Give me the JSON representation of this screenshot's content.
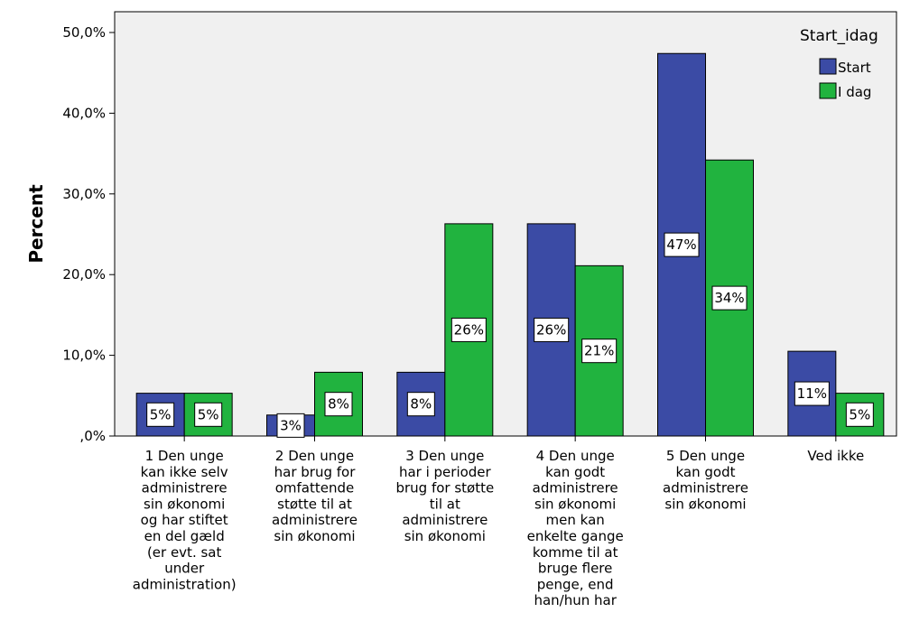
{
  "chart_data": {
    "type": "bar",
    "ylabel": "Percent",
    "xlabel": "",
    "ylim": [
      0,
      50
    ],
    "y_ticks": [
      0,
      10,
      20,
      30,
      40,
      50
    ],
    "y_tick_labels": [
      ",0%",
      "10,0%",
      "20,0%",
      "30,0%",
      "40,0%",
      "50,0%"
    ],
    "categories": [
      [
        "1 Den unge",
        "kan ikke selv",
        "administrere",
        "sin økonomi",
        "og har stiftet",
        "en del gæld",
        "(er evt. sat",
        "under",
        "administration)"
      ],
      [
        "2 Den unge",
        "har brug for",
        "omfattende",
        "støtte til at",
        "administrere",
        "sin økonomi"
      ],
      [
        "3 Den unge",
        "har i perioder",
        "brug for støtte",
        "til at",
        "administrere",
        "sin økonomi"
      ],
      [
        "4 Den unge",
        "kan godt",
        "administrere",
        "sin økonomi",
        "men kan",
        "enkelte gange",
        "komme til at",
        "bruge flere",
        "penge, end",
        "han/hun har"
      ],
      [
        "5 Den unge",
        "kan godt",
        "administrere",
        "sin økonomi"
      ],
      [
        "Ved ikke"
      ]
    ],
    "legend_title": "Start_idag",
    "legend_position": "top-right",
    "series": [
      {
        "name": "Start",
        "color": "#3b4ba5",
        "values": [
          5.3,
          2.6,
          7.9,
          26.3,
          47.4,
          10.5
        ],
        "labels": [
          "5%",
          "3%",
          "8%",
          "26%",
          "47%",
          "11%"
        ]
      },
      {
        "name": "I dag",
        "color": "#21b33f",
        "values": [
          5.3,
          7.9,
          26.3,
          21.1,
          34.2,
          5.3
        ],
        "labels": [
          "5%",
          "8%",
          "26%",
          "21%",
          "34%",
          "5%"
        ]
      }
    ],
    "plot_background": "#f0f0f0",
    "grid": false
  }
}
